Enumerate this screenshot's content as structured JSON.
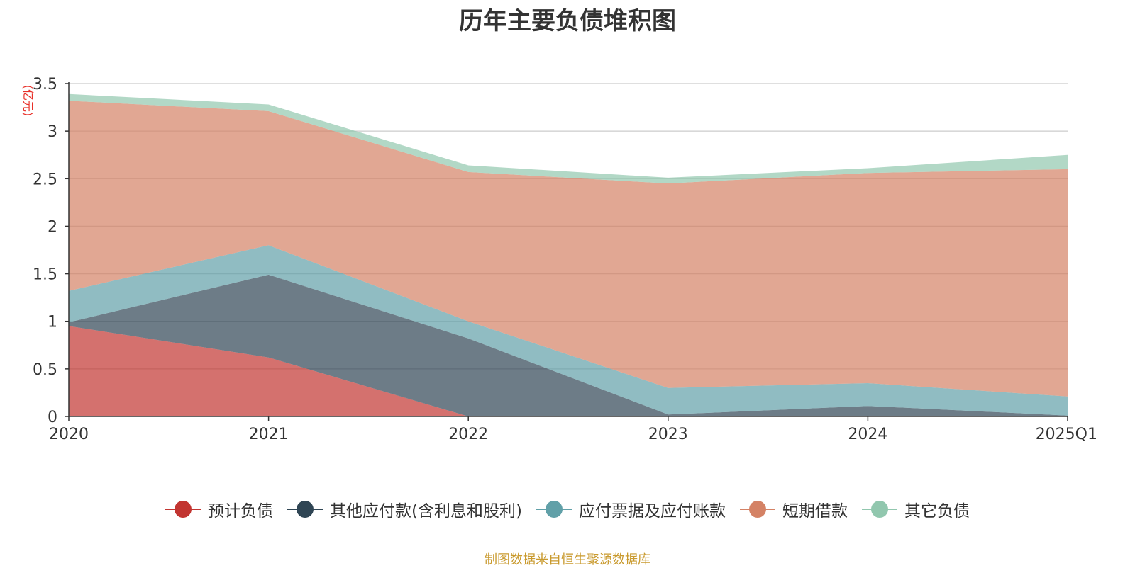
{
  "chart_data": {
    "type": "area",
    "stacked": true,
    "title": "历年主要负债堆积图",
    "unit_label": "(亿元)",
    "categories": [
      "2020",
      "2021",
      "2022",
      "2023",
      "2024",
      "2025Q1"
    ],
    "ylim": [
      0,
      3.5
    ],
    "yticks": [
      "0",
      "0.5",
      "1",
      "1.5",
      "2",
      "2.5",
      "3",
      "3.5"
    ],
    "grid": true,
    "legend_position": "bottom",
    "series": [
      {
        "name": "预计负债",
        "color": "#c23531",
        "values": [
          0.95,
          0.62,
          0.0,
          0.0,
          0.0,
          0.0
        ]
      },
      {
        "name": "其他应付款(含利息和股利)",
        "color": "#2f4554",
        "values": [
          0.04,
          0.87,
          0.82,
          0.02,
          0.11,
          0.01
        ]
      },
      {
        "name": "应付票据及应付账款",
        "color": "#61a0a8",
        "values": [
          0.33,
          0.31,
          0.18,
          0.28,
          0.24,
          0.2
        ]
      },
      {
        "name": "短期借款",
        "color": "#d48265",
        "values": [
          2.0,
          1.41,
          1.57,
          2.15,
          2.21,
          2.39
        ]
      },
      {
        "name": "其它负债",
        "color": "#91c7ae",
        "values": [
          0.07,
          0.07,
          0.07,
          0.06,
          0.05,
          0.15
        ]
      }
    ]
  },
  "source_note": "制图数据来自恒生聚源数据库"
}
